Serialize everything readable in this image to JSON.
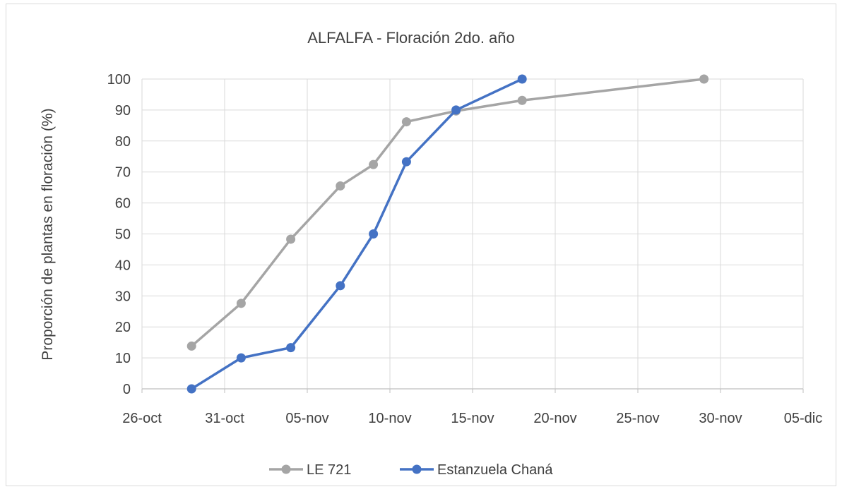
{
  "chart_data": {
    "type": "line",
    "title": "ALFALFA - Floración 2do. año",
    "xlabel": "",
    "ylabel": "Proporción de plantas en floración (%)",
    "x_axis": {
      "type": "date",
      "range": [
        "2020-10-26",
        "2020-12-05"
      ],
      "ticks": [
        "26-oct",
        "31-oct",
        "05-nov",
        "10-nov",
        "15-nov",
        "20-nov",
        "25-nov",
        "30-nov",
        "05-dic"
      ]
    },
    "ylim": [
      0,
      100
    ],
    "y_ticks": [
      0,
      10,
      20,
      30,
      40,
      50,
      60,
      70,
      80,
      90,
      100
    ],
    "grid": true,
    "legend": "bottom",
    "series": [
      {
        "name": "LE 721",
        "color": "#a5a5a5",
        "points": [
          {
            "x": "2020-10-29",
            "y": 13.8
          },
          {
            "x": "2020-11-01",
            "y": 27.6
          },
          {
            "x": "2020-11-04",
            "y": 48.3
          },
          {
            "x": "2020-11-07",
            "y": 65.5
          },
          {
            "x": "2020-11-09",
            "y": 72.4
          },
          {
            "x": "2020-11-11",
            "y": 86.2
          },
          {
            "x": "2020-11-14",
            "y": 89.7
          },
          {
            "x": "2020-11-18",
            "y": 93.1
          },
          {
            "x": "2020-11-29",
            "y": 100
          }
        ]
      },
      {
        "name": "Estanzuela Chaná",
        "color": "#4472c4",
        "points": [
          {
            "x": "2020-10-29",
            "y": 0
          },
          {
            "x": "2020-11-01",
            "y": 10
          },
          {
            "x": "2020-11-04",
            "y": 13.3
          },
          {
            "x": "2020-11-07",
            "y": 33.3
          },
          {
            "x": "2020-11-09",
            "y": 50
          },
          {
            "x": "2020-11-11",
            "y": 73.3
          },
          {
            "x": "2020-11-14",
            "y": 90
          },
          {
            "x": "2020-11-18",
            "y": 100
          }
        ]
      }
    ]
  }
}
